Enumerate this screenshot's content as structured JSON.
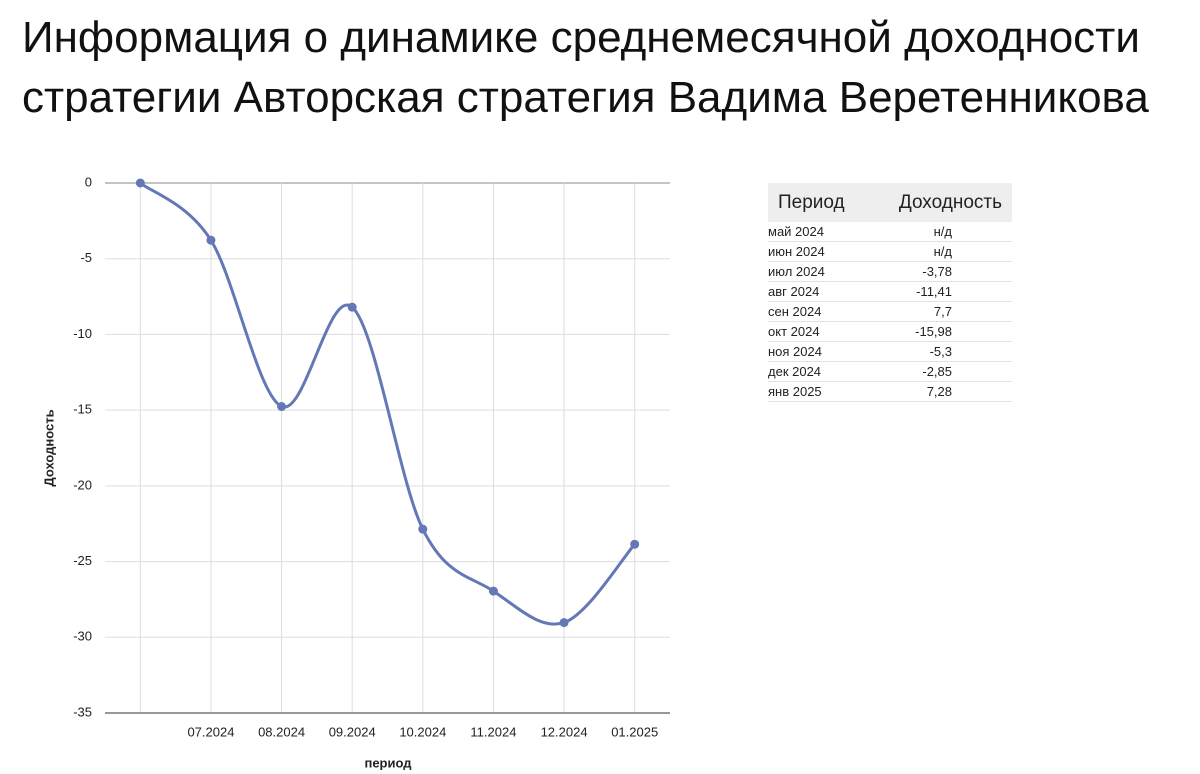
{
  "header": {
    "title": "Информация о динамике среднемесячной доходности стратегии Авторская стратегия Вадима Веретенникова"
  },
  "chart_data": {
    "type": "line",
    "x_label": "период",
    "y_label": "Доходность",
    "categories": [
      null,
      "07.2024",
      "08.2024",
      "09.2024",
      "10.2024",
      "11.2024",
      "12.2024",
      "01.2025"
    ],
    "series": [
      {
        "name": "Доходность",
        "color": "#6378b5",
        "values": [
          0,
          -3.78,
          -14.76,
          -8.2,
          -22.86,
          -26.95,
          -29.03,
          -23.86
        ]
      }
    ],
    "ylim": [
      -35,
      0
    ],
    "yticks": [
      0,
      -5,
      -10,
      -15,
      -20,
      -25,
      -30,
      -35
    ],
    "grid": true,
    "smooth": true
  },
  "table": {
    "columns": [
      "Период",
      "Доходность"
    ],
    "rows": [
      [
        "май 2024",
        "н/д"
      ],
      [
        "июн 2024",
        "н/д"
      ],
      [
        "июл 2024",
        "-3,78"
      ],
      [
        "авг 2024",
        "-11,41"
      ],
      [
        "сен 2024",
        "7,7"
      ],
      [
        "окт 2024",
        "-15,98"
      ],
      [
        "ноя 2024",
        "-5,3"
      ],
      [
        "дек 2024",
        "-2,85"
      ],
      [
        "янв 2025",
        "7,28"
      ]
    ]
  }
}
